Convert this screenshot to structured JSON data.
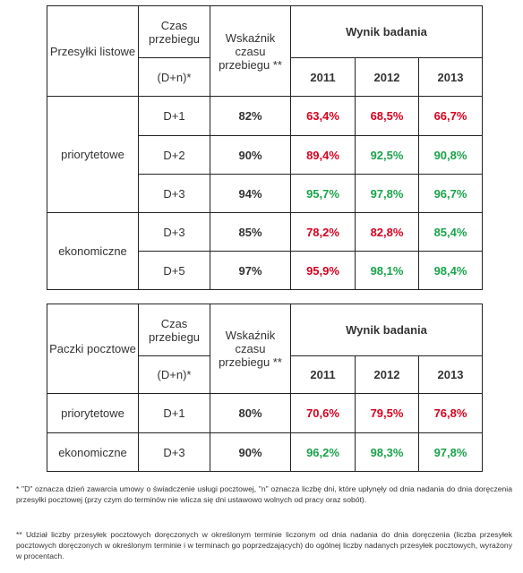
{
  "table1": {
    "header": {
      "category": "Przesyłki listowe",
      "time_label": "Czas przebiegu",
      "time_sub": "(D+n)*",
      "indicator": "Wskaźnik czasu przebiegu **",
      "result": "Wynik badania",
      "years": [
        "2011",
        "2012",
        "2013"
      ]
    },
    "groups": [
      {
        "name": "priorytetowe",
        "rows": [
          {
            "time": "D+1",
            "indicator": "82%",
            "values": [
              "63,4%",
              "68,5%",
              "66,7%"
            ],
            "status": [
              "red",
              "red",
              "red"
            ]
          },
          {
            "time": "D+2",
            "indicator": "90%",
            "values": [
              "89,4%",
              "92,5%",
              "90,8%"
            ],
            "status": [
              "red",
              "green",
              "green"
            ]
          },
          {
            "time": "D+3",
            "indicator": "94%",
            "values": [
              "95,7%",
              "97,8%",
              "96,7%"
            ],
            "status": [
              "green",
              "green",
              "green"
            ]
          }
        ]
      },
      {
        "name": "ekonomiczne",
        "rows": [
          {
            "time": "D+3",
            "indicator": "85%",
            "values": [
              "78,2%",
              "82,8%",
              "85,4%"
            ],
            "status": [
              "red",
              "red",
              "green"
            ]
          },
          {
            "time": "D+5",
            "indicator": "97%",
            "values": [
              "95,9%",
              "98,1%",
              "98,4%"
            ],
            "status": [
              "red",
              "green",
              "green"
            ]
          }
        ]
      }
    ]
  },
  "table2": {
    "header": {
      "category": "Paczki pocztowe",
      "time_label": "Czas przebiegu",
      "time_sub": "(D+n)*",
      "indicator": "Wskaźnik czasu przebiegu **",
      "result": "Wynik badania",
      "years": [
        "2011",
        "2012",
        "2013"
      ]
    },
    "rows": [
      {
        "name": "priorytetowe",
        "time": "D+1",
        "indicator": "80%",
        "values": [
          "70,6%",
          "79,5%",
          "76,8%"
        ],
        "status": [
          "red",
          "red",
          "red"
        ]
      },
      {
        "name": "ekonomiczne",
        "time": "D+3",
        "indicator": "90%",
        "values": [
          "96,2%",
          "98,3%",
          "97,8%"
        ],
        "status": [
          "green",
          "green",
          "green"
        ]
      }
    ]
  },
  "colors": {
    "below_target": "#d9001e",
    "meets_target": "#1aa34a"
  },
  "notes": {
    "note1": "* \"D\" oznacza dzień zawarcia umowy o świadczenie usługi pocztowej, \"n\" oznacza liczbę dni, które upłynęły od dnia nadania do dnia doręczenia przesyłki pocztowej (przy czym do terminów nie wlicza się dni ustawowo wolnych od pracy oraz sobót).",
    "note2": "** Udział liczby przesyłek pocztowych doręczonych w określonym terminie liczonym od dnia nadania do dnia doręczenia (liczba przesyłek pocztowych doręczonych w określonym terminie i w terminach go poprzedzających) do ogólnej liczby nadanych przesyłek pocztowych, wyrażony w procentach."
  }
}
